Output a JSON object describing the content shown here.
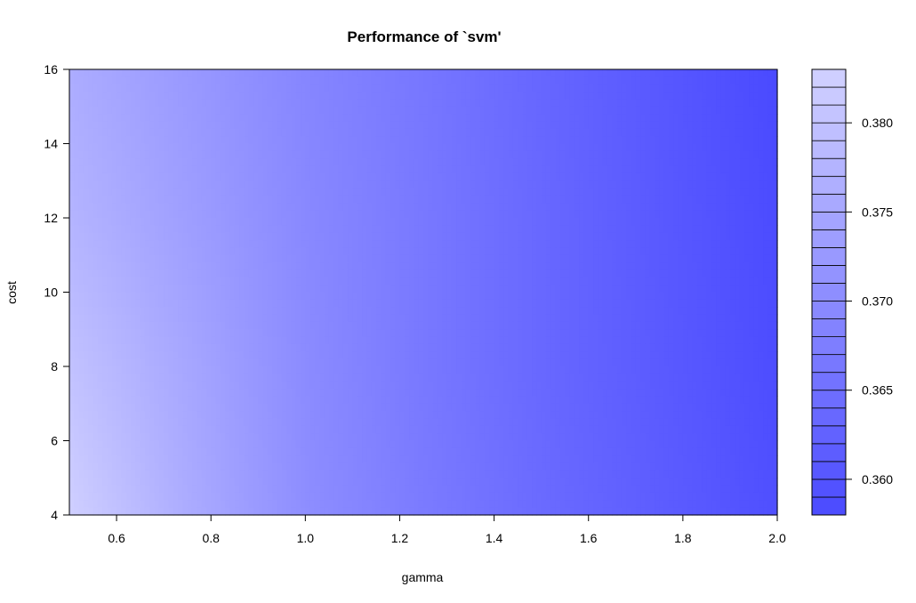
{
  "chart_data": {
    "type": "heatmap",
    "title": "Performance of `svm'",
    "xlabel": "gamma",
    "ylabel": "cost",
    "xlim": [
      0.5,
      2.0
    ],
    "ylim": [
      4,
      16
    ],
    "x_ticks": [
      "0.6",
      "0.8",
      "1.0",
      "1.2",
      "1.4",
      "1.6",
      "1.8",
      "2.0"
    ],
    "y_ticks": [
      "4",
      "6",
      "8",
      "10",
      "12",
      "14",
      "16"
    ],
    "colorbar": {
      "range": [
        0.358,
        0.383
      ],
      "ticks": [
        "0.360",
        "0.365",
        "0.370",
        "0.375",
        "0.380"
      ],
      "low_color": "#4a4aff",
      "high_color": "#d2d2ff"
    },
    "gamma": [
      0.5,
      0.75,
      1.0,
      1.25,
      1.5,
      1.75,
      2.0
    ],
    "cost": [
      4,
      8,
      12,
      16
    ],
    "z": [
      [
        0.3825,
        0.376,
        0.3705,
        0.367,
        0.364,
        0.3615,
        0.359
      ],
      [
        0.38,
        0.375,
        0.37,
        0.3665,
        0.3635,
        0.361,
        0.3585
      ],
      [
        0.3775,
        0.3735,
        0.3695,
        0.3665,
        0.3635,
        0.3608,
        0.3583
      ],
      [
        0.376,
        0.3725,
        0.369,
        0.3662,
        0.3632,
        0.3606,
        0.358
      ]
    ]
  }
}
